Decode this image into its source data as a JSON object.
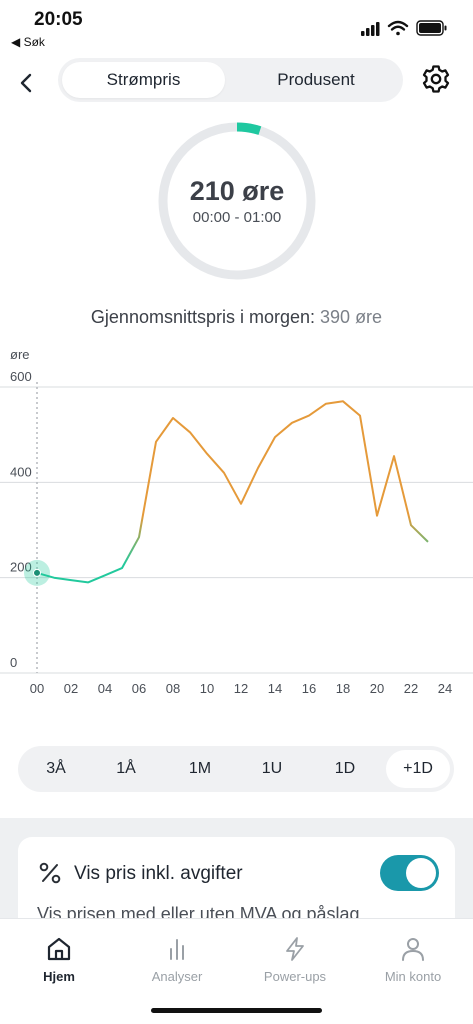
{
  "status_bar": {
    "time": "20:05",
    "back_label": "◀ Søk"
  },
  "header": {
    "tabs": [
      {
        "label": "Strømpris",
        "active": true
      },
      {
        "label": "Produsent",
        "active": false
      }
    ],
    "back_icon": "chevron-left-icon",
    "settings_icon": "gear-icon"
  },
  "gauge": {
    "price": "210 øre",
    "time_range": "00:00 - 01:00",
    "accent": "#1fc8a0",
    "track": "#e6e8eb"
  },
  "average": {
    "label": "Gjennomsnittspris i morgen:",
    "value": "390 øre"
  },
  "chart_data": {
    "type": "line",
    "ylabel": "øre",
    "ylim": [
      0,
      600
    ],
    "y_ticks": [
      0,
      200,
      400,
      600
    ],
    "y_tick_labels": [
      "0",
      "200",
      "400",
      "600"
    ],
    "x_ticks": [
      0,
      2,
      4,
      6,
      8,
      10,
      12,
      14,
      16,
      18,
      20,
      22,
      24
    ],
    "x_tick_labels": [
      "00",
      "02",
      "04",
      "06",
      "08",
      "10",
      "12",
      "14",
      "16",
      "18",
      "20",
      "22",
      "24"
    ],
    "grid": true,
    "series": [
      {
        "x": [
          0,
          1,
          2,
          3,
          4,
          5,
          6,
          7,
          8,
          9,
          10,
          11,
          12,
          13,
          14,
          15,
          16,
          17,
          18,
          19,
          20,
          21,
          22,
          23
        ],
        "values": [
          210,
          200,
          195,
          190,
          205,
          220,
          285,
          485,
          535,
          505,
          460,
          420,
          355,
          430,
          495,
          525,
          540,
          565,
          570,
          540,
          330,
          455,
          310,
          275
        ]
      }
    ],
    "low_color": "#22c99d",
    "high_color": "#e59a3a",
    "current_hour": 0
  },
  "range_selector": {
    "options": [
      {
        "label": "3Å",
        "active": false
      },
      {
        "label": "1Å",
        "active": false
      },
      {
        "label": "1M",
        "active": false
      },
      {
        "label": "1U",
        "active": false
      },
      {
        "label": "1D",
        "active": false
      },
      {
        "label": "+1D",
        "active": true
      }
    ]
  },
  "settings_card": {
    "icon": "percent-icon",
    "title": "Vis pris inkl. avgifter",
    "description": "Vis prisen med eller uten MVA og påslag",
    "toggle_on": true,
    "toggle_color": "#1a98aa"
  },
  "tab_bar": {
    "items": [
      {
        "label": "Hjem",
        "icon": "home-icon",
        "active": true
      },
      {
        "label": "Analyser",
        "icon": "bar-chart-icon",
        "active": false
      },
      {
        "label": "Power-ups",
        "icon": "lightning-icon",
        "active": false
      },
      {
        "label": "Min konto",
        "icon": "user-icon",
        "active": false
      }
    ]
  }
}
